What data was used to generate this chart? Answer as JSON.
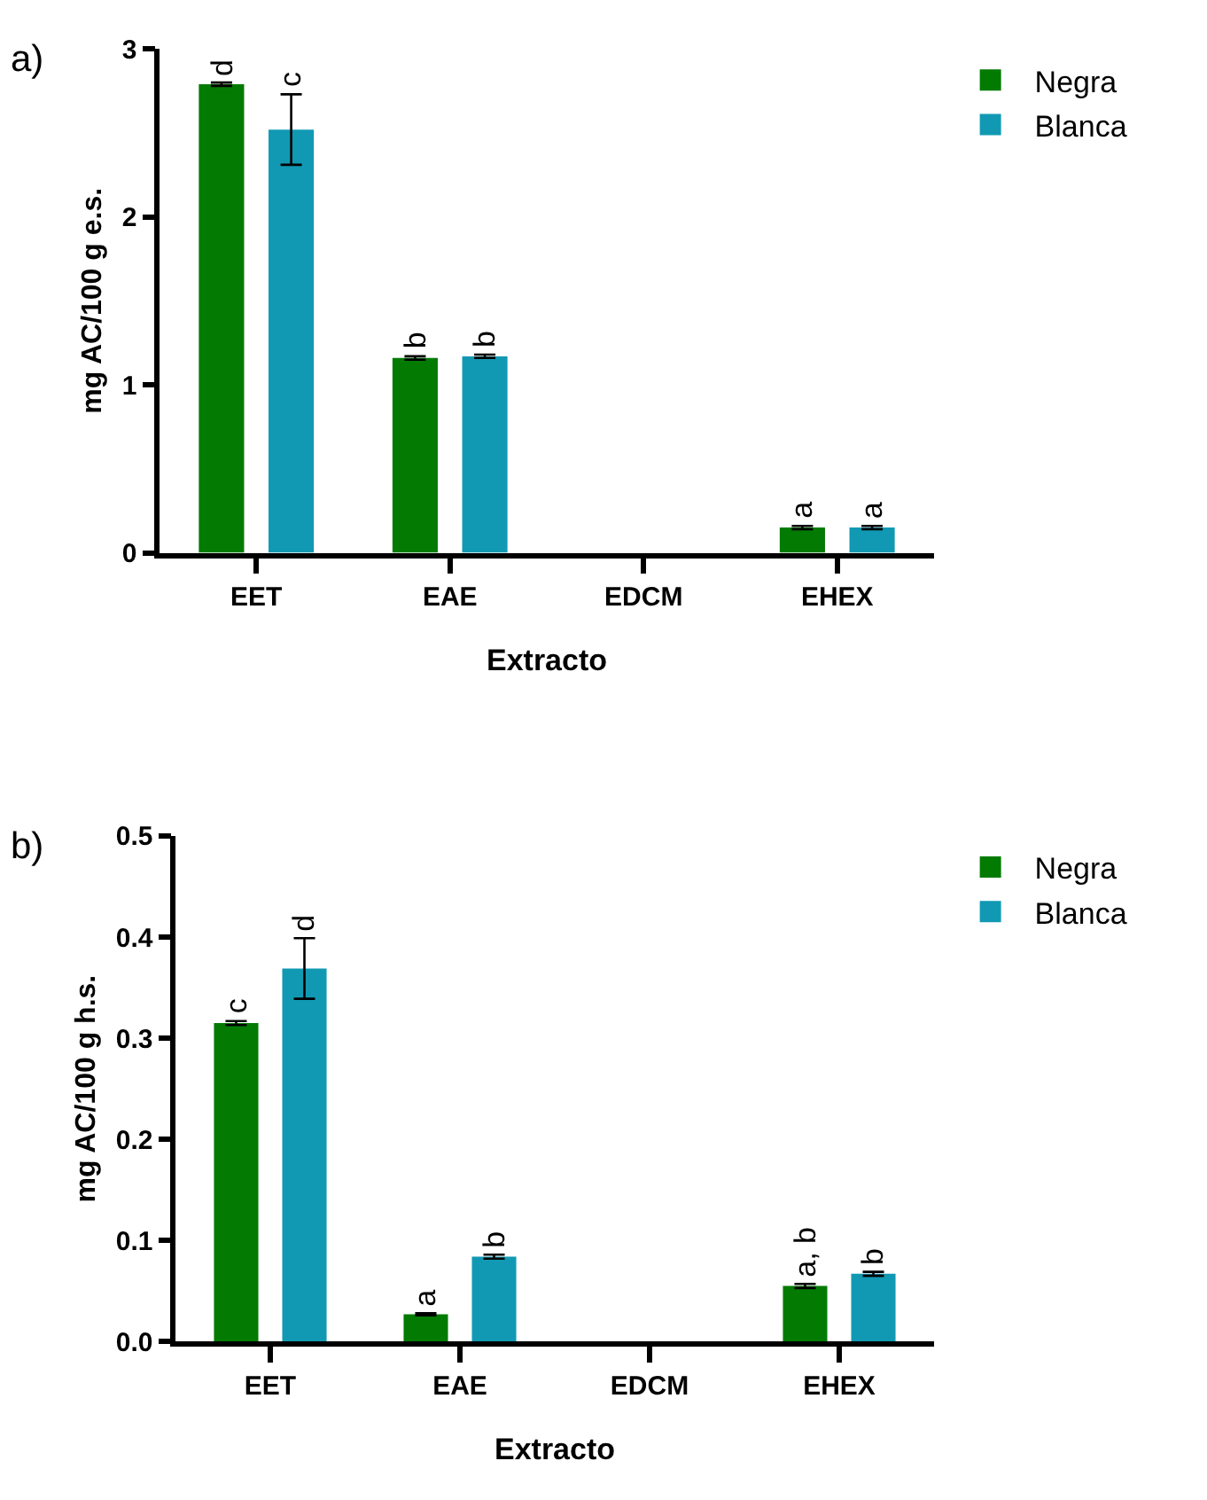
{
  "chart_data": [
    {
      "type": "bar",
      "categories": [
        "EET",
        "EAE",
        "EDCM",
        "EHEX"
      ],
      "xlabel": "Extracto",
      "ylabel": "mg AC/100 g e.s.",
      "ylim": [
        0,
        3
      ],
      "yticks": [
        0,
        1,
        2,
        3
      ],
      "legend": "top right",
      "annotations": [
        "a)"
      ],
      "series": [
        {
          "name": "Negra",
          "color": "#037b03",
          "values": [
            2.79,
            1.16,
            null,
            0.15
          ],
          "errors": [
            0.01,
            0.01,
            null,
            0.01
          ],
          "value_labels": [
            "d",
            "b",
            null,
            "a"
          ]
        },
        {
          "name": "Blanca",
          "color": "#1199b4",
          "values": [
            2.52,
            1.17,
            null,
            0.15
          ],
          "errors": [
            0.21,
            0.01,
            null,
            0.01
          ],
          "value_labels": [
            "c",
            "b",
            null,
            "a"
          ]
        }
      ]
    },
    {
      "type": "bar",
      "categories": [
        "EET",
        "EAE",
        "EDCM",
        "EHEX"
      ],
      "xlabel": "Extracto",
      "ylabel": "mg AC/100 g h.s.",
      "ylim": [
        0,
        0.5
      ],
      "yticks": [
        {
          "value": 0,
          "label": "0.0"
        },
        0.1,
        0.2,
        0.3,
        0.4,
        0.5
      ],
      "legend": "top right",
      "annotations": [
        "b)"
      ],
      "series": [
        {
          "name": "Negra",
          "color": "#037b03",
          "values": [
            0.315,
            0.027,
            null,
            0.055
          ],
          "errors": [
            0.002,
            0.001,
            null,
            0.002
          ],
          "value_labels": [
            "c",
            "a",
            null,
            "a, b"
          ]
        },
        {
          "name": "Blanca",
          "color": "#1199b4",
          "values": [
            0.369,
            0.084,
            null,
            0.067
          ],
          "errors": [
            0.03,
            0.002,
            null,
            0.002
          ],
          "value_labels": [
            "d",
            "b",
            null,
            "b"
          ]
        }
      ]
    }
  ]
}
